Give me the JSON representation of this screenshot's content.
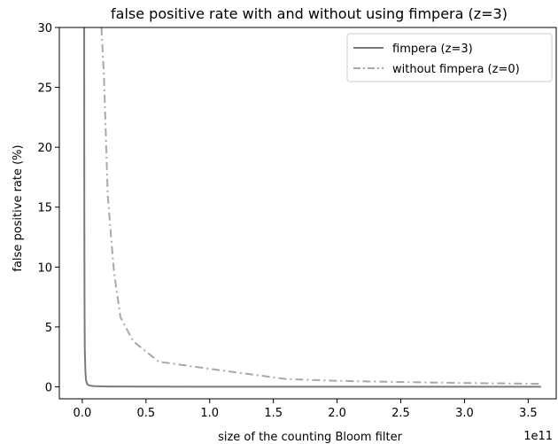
{
  "chart_data": {
    "type": "line",
    "title": "false positive rate with and without using fimpera (z=3)",
    "xlabel": "size of the counting Bloom filter",
    "ylabel": "false positive rate (%)",
    "x_offset_label": "1e11",
    "xlim": [
      -0.18,
      3.72
    ],
    "ylim": [
      -1,
      30
    ],
    "xticks": [
      0.0,
      0.5,
      1.0,
      1.5,
      2.0,
      2.5,
      3.0,
      3.5
    ],
    "xtick_labels": [
      "0.0",
      "0.5",
      "1.0",
      "1.5",
      "2.0",
      "2.5",
      "3.0",
      "3.5"
    ],
    "yticks": [
      0,
      5,
      10,
      15,
      20,
      25,
      30
    ],
    "ytick_labels": [
      "0",
      "5",
      "10",
      "15",
      "20",
      "25",
      "30"
    ],
    "grid": false,
    "legend_position": "top-right",
    "series": [
      {
        "name": "fimpera (z=3)",
        "color": "#7a7a7a",
        "style": "solid",
        "x": [
          0.015,
          0.016,
          0.018,
          0.02,
          0.025,
          0.03,
          0.04,
          0.06,
          0.1,
          0.2,
          0.5,
          1.0,
          2.0,
          3.0,
          3.6
        ],
        "y": [
          30,
          15,
          6,
          3,
          1.2,
          0.5,
          0.2,
          0.1,
          0.05,
          0.03,
          0.02,
          0.01,
          0.01,
          0.01,
          0.01
        ]
      },
      {
        "name": "without fimpera (z=0)",
        "color": "#a9a9a9",
        "style": "dashdot",
        "x": [
          0.15,
          0.17,
          0.2,
          0.23,
          0.25,
          0.3,
          0.4,
          0.6,
          1.0,
          1.6,
          2.0,
          2.5,
          3.0,
          3.6
        ],
        "y": [
          30,
          26,
          16,
          12,
          9.5,
          5.8,
          3.8,
          2.1,
          1.5,
          0.65,
          0.5,
          0.4,
          0.32,
          0.25
        ]
      }
    ]
  }
}
